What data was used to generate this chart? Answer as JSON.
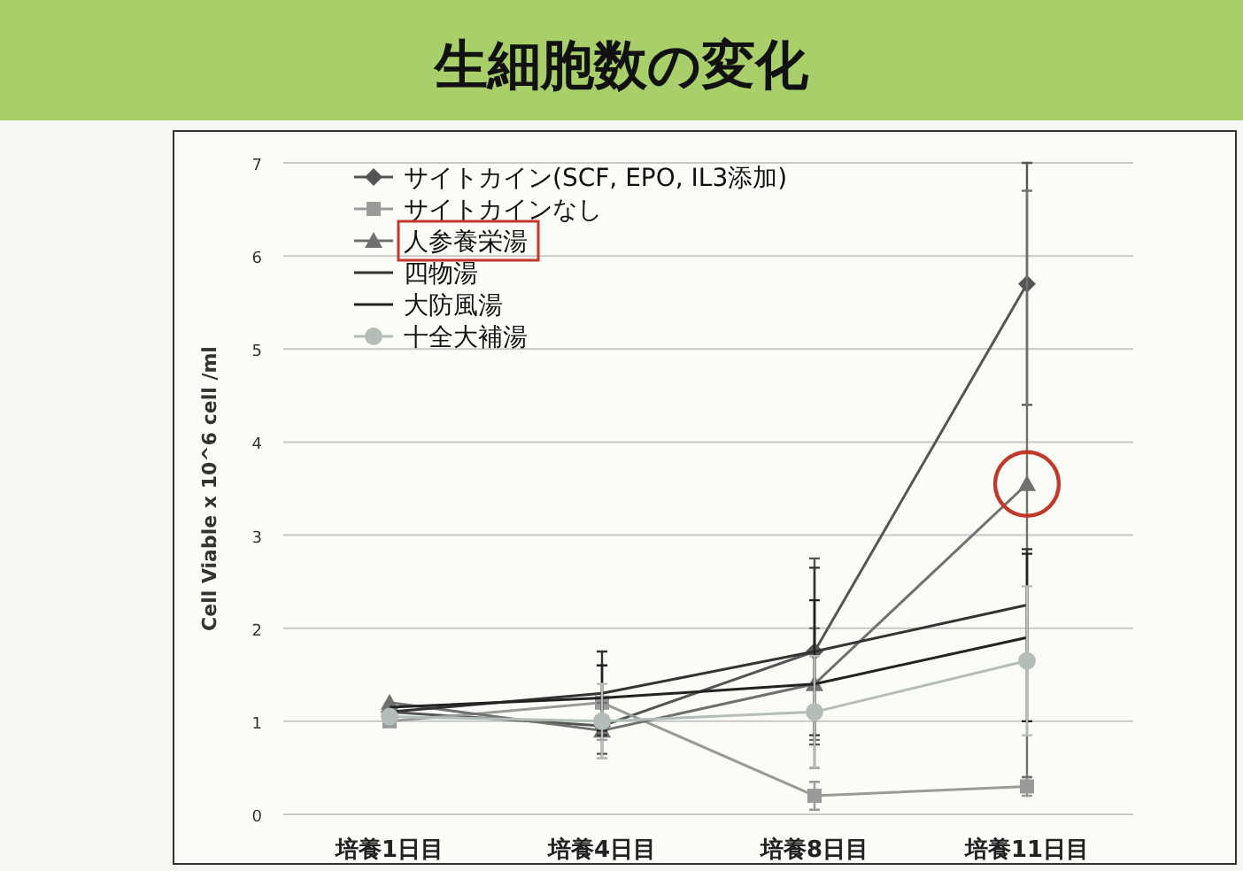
{
  "chart_data": {
    "type": "line",
    "title": "生細胞数の変化",
    "ylabel": "Cell Viable x 10^6 cell /ml",
    "categories": [
      "培養1日目",
      "培養4日目",
      "培養8日目",
      "培養11日目"
    ],
    "series": [
      {
        "name": "サイトカイン(SCF, EPO, IL3添加)",
        "color": "#555555",
        "marker": "diamond",
        "values": [
          1.1,
          0.95,
          1.75,
          5.7
        ],
        "errors": [
          null,
          0.3,
          1.0,
          1.3
        ]
      },
      {
        "name": "サイトカインなし",
        "color": "#9a9a9a",
        "marker": "square",
        "values": [
          1.0,
          1.2,
          0.2,
          0.3
        ],
        "errors": [
          null,
          0.4,
          0.15,
          0.1
        ]
      },
      {
        "name": "人参養栄湯",
        "color": "#707070",
        "marker": "triangle",
        "values": [
          1.2,
          0.9,
          1.4,
          3.55
        ],
        "errors": [
          null,
          0.3,
          0.6,
          3.15
        ]
      },
      {
        "name": "四物湯",
        "color": "#333333",
        "marker": "none",
        "values": [
          1.1,
          1.3,
          1.75,
          2.25
        ],
        "errors": [
          null,
          0.45,
          0.9,
          0.6
        ]
      },
      {
        "name": "大防風湯",
        "color": "#222222",
        "marker": "none",
        "values": [
          1.15,
          1.25,
          1.4,
          1.9
        ],
        "errors": [
          null,
          0.35,
          0.9,
          0.9
        ]
      },
      {
        "name": "十全大補湯",
        "color": "#b5bdb8",
        "marker": "circle",
        "values": [
          1.05,
          1.0,
          1.1,
          1.65
        ],
        "errors": [
          null,
          0.4,
          0.6,
          0.8
        ]
      }
    ],
    "ylim": [
      0,
      7
    ],
    "yticks": [
      0,
      1,
      2,
      3,
      4,
      5,
      6,
      7
    ],
    "grid": "y",
    "legend": "top left"
  }
}
